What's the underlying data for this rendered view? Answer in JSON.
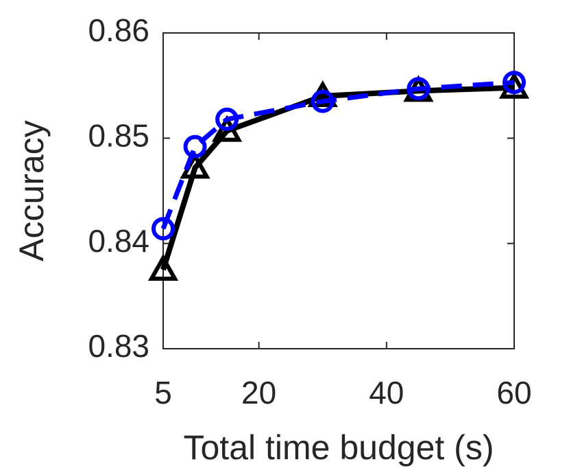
{
  "chart_data": {
    "type": "line",
    "x_label": "Total time budget (s)",
    "y_label": "Accuracy",
    "x": [
      5,
      10,
      15,
      30,
      45,
      60
    ],
    "series": [
      {
        "color": "#000000",
        "marker": "triangle",
        "dashed": false,
        "values": [
          0.8375,
          0.8472,
          0.8507,
          0.854,
          0.8545,
          0.8548
        ]
      },
      {
        "color": "#0000ff",
        "marker": "circle",
        "dashed": true,
        "values": [
          0.8414,
          0.8492,
          0.8518,
          0.8535,
          0.8547,
          0.8553
        ]
      }
    ],
    "xlim": [
      5,
      60
    ],
    "xticks": [
      5,
      20,
      40,
      60
    ],
    "ylim": [
      0.83,
      0.86
    ],
    "yticks": [
      0.83,
      0.84,
      0.85,
      0.86
    ],
    "grid": false
  }
}
